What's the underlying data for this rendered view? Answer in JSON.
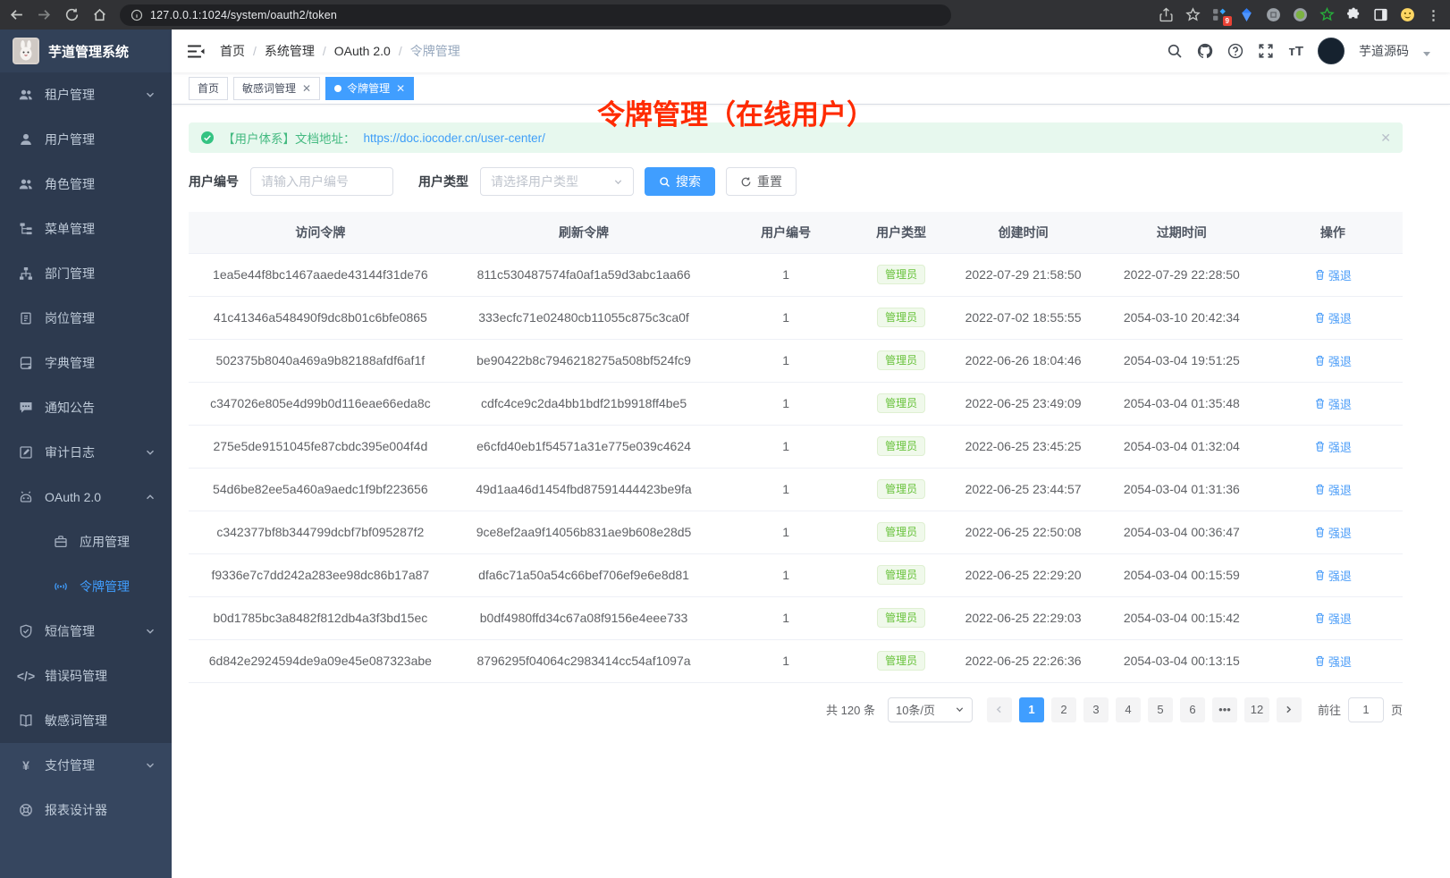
{
  "colors": {
    "accent": "#409eff",
    "success": "#67c23a",
    "annotation_red": "#ff2b00",
    "sidebar_bg": "#2d3a4f"
  },
  "browser": {
    "url": "127.0.0.1:1024/system/oauth2/token",
    "extensions_badge": "9"
  },
  "annotation": "令牌管理（在线用户）",
  "sidebar": {
    "app_title": "芋道管理系统",
    "items": [
      {
        "id": "tenant",
        "label": "租户管理",
        "icon": "users-icon",
        "chevron": "down"
      },
      {
        "id": "user",
        "label": "用户管理",
        "icon": "user-icon"
      },
      {
        "id": "role",
        "label": "角色管理",
        "icon": "role-icon"
      },
      {
        "id": "menu",
        "label": "菜单管理",
        "icon": "menu-tree-icon"
      },
      {
        "id": "dept",
        "label": "部门管理",
        "icon": "org-icon"
      },
      {
        "id": "post",
        "label": "岗位管理",
        "icon": "post-icon"
      },
      {
        "id": "dict",
        "label": "字典管理",
        "icon": "dict-icon"
      },
      {
        "id": "notice",
        "label": "通知公告",
        "icon": "notice-icon"
      },
      {
        "id": "audit-log",
        "label": "审计日志",
        "icon": "audit-icon",
        "chevron": "down"
      },
      {
        "id": "oauth2",
        "label": "OAuth 2.0",
        "icon": "oauth-icon",
        "chevron": "up",
        "children": [
          {
            "id": "oauth2-app",
            "label": "应用管理",
            "icon": "app-icon"
          },
          {
            "id": "oauth2-token",
            "label": "令牌管理",
            "icon": "token-icon",
            "active": true
          }
        ]
      },
      {
        "id": "sms",
        "label": "短信管理",
        "icon": "shield-icon",
        "chevron": "down"
      },
      {
        "id": "error-code",
        "label": "错误码管理",
        "icon": "code-icon"
      },
      {
        "id": "sensitive-word",
        "label": "敏感词管理",
        "icon": "book-icon"
      },
      {
        "id": "pay",
        "label": "支付管理",
        "icon": "yen-icon",
        "chevron": "down",
        "section": "light"
      },
      {
        "id": "report-designer",
        "label": "报表设计器",
        "icon": "compass-icon",
        "section": "light"
      }
    ]
  },
  "header": {
    "breadcrumb": [
      "首页",
      "系统管理",
      "OAuth 2.0",
      "令牌管理"
    ],
    "user_name": "芋道源码"
  },
  "tabs": [
    {
      "label": "首页",
      "closable": false,
      "active": false
    },
    {
      "label": "敏感词管理",
      "closable": true,
      "active": false
    },
    {
      "label": "令牌管理",
      "closable": true,
      "active": true
    }
  ],
  "alert": {
    "text": "【用户体系】文档地址：",
    "link": "https://doc.iocoder.cn/user-center/"
  },
  "filters": {
    "user_id_label": "用户编号",
    "user_id_placeholder": "请输入用户编号",
    "user_type_label": "用户类型",
    "user_type_placeholder": "请选择用户类型",
    "search_label": "搜索",
    "reset_label": "重置"
  },
  "table": {
    "columns": [
      "访问令牌",
      "刷新令牌",
      "用户编号",
      "用户类型",
      "创建时间",
      "过期时间",
      "操作"
    ],
    "action_label": "强退",
    "rows": [
      {
        "access": "1ea5e44f8bc1467aaede43144f31de76",
        "refresh": "811c530487574fa0af1a59d3abc1aa66",
        "user_id": "1",
        "user_type": "管理员",
        "created": "2022-07-29 21:58:50",
        "expires": "2022-07-29 22:28:50"
      },
      {
        "access": "41c41346a548490f9dc8b01c6bfe0865",
        "refresh": "333ecfc71e02480cb11055c875c3ca0f",
        "user_id": "1",
        "user_type": "管理员",
        "created": "2022-07-02 18:55:55",
        "expires": "2054-03-10 20:42:34"
      },
      {
        "access": "502375b8040a469a9b82188afdf6af1f",
        "refresh": "be90422b8c7946218275a508bf524fc9",
        "user_id": "1",
        "user_type": "管理员",
        "created": "2022-06-26 18:04:46",
        "expires": "2054-03-04 19:51:25"
      },
      {
        "access": "c347026e805e4d99b0d116eae66eda8c",
        "refresh": "cdfc4ce9c2da4bb1bdf21b9918ff4be5",
        "user_id": "1",
        "user_type": "管理员",
        "created": "2022-06-25 23:49:09",
        "expires": "2054-03-04 01:35:48"
      },
      {
        "access": "275e5de9151045fe87cbdc395e004f4d",
        "refresh": "e6cfd40eb1f54571a31e775e039c4624",
        "user_id": "1",
        "user_type": "管理员",
        "created": "2022-06-25 23:45:25",
        "expires": "2054-03-04 01:32:04"
      },
      {
        "access": "54d6be82ee5a460a9aedc1f9bf223656",
        "refresh": "49d1aa46d1454fbd87591444423be9fa",
        "user_id": "1",
        "user_type": "管理员",
        "created": "2022-06-25 23:44:57",
        "expires": "2054-03-04 01:31:36"
      },
      {
        "access": "c342377bf8b344799dcbf7bf095287f2",
        "refresh": "9ce8ef2aa9f14056b831ae9b608e28d5",
        "user_id": "1",
        "user_type": "管理员",
        "created": "2022-06-25 22:50:08",
        "expires": "2054-03-04 00:36:47"
      },
      {
        "access": "f9336e7c7dd242a283ee98dc86b17a87",
        "refresh": "dfa6c71a50a54c66bef706ef9e6e8d81",
        "user_id": "1",
        "user_type": "管理员",
        "created": "2022-06-25 22:29:20",
        "expires": "2054-03-04 00:15:59"
      },
      {
        "access": "b0d1785bc3a8482f812db4a3f3bd15ec",
        "refresh": "b0df4980ffd34c67a08f9156e4eee733",
        "user_id": "1",
        "user_type": "管理员",
        "created": "2022-06-25 22:29:03",
        "expires": "2054-03-04 00:15:42"
      },
      {
        "access": "6d842e2924594de9a09e45e087323abe",
        "refresh": "8796295f04064c2983414cc54af1097a",
        "user_id": "1",
        "user_type": "管理员",
        "created": "2022-06-25 22:26:36",
        "expires": "2054-03-04 00:13:15"
      }
    ]
  },
  "pagination": {
    "total_label": "共 120 条",
    "page_size": "10条/页",
    "pages": [
      "1",
      "2",
      "3",
      "4",
      "5",
      "6",
      "...",
      "12"
    ],
    "active_page": "1",
    "goto_label": "前往",
    "goto_value": "1",
    "goto_unit": "页"
  }
}
